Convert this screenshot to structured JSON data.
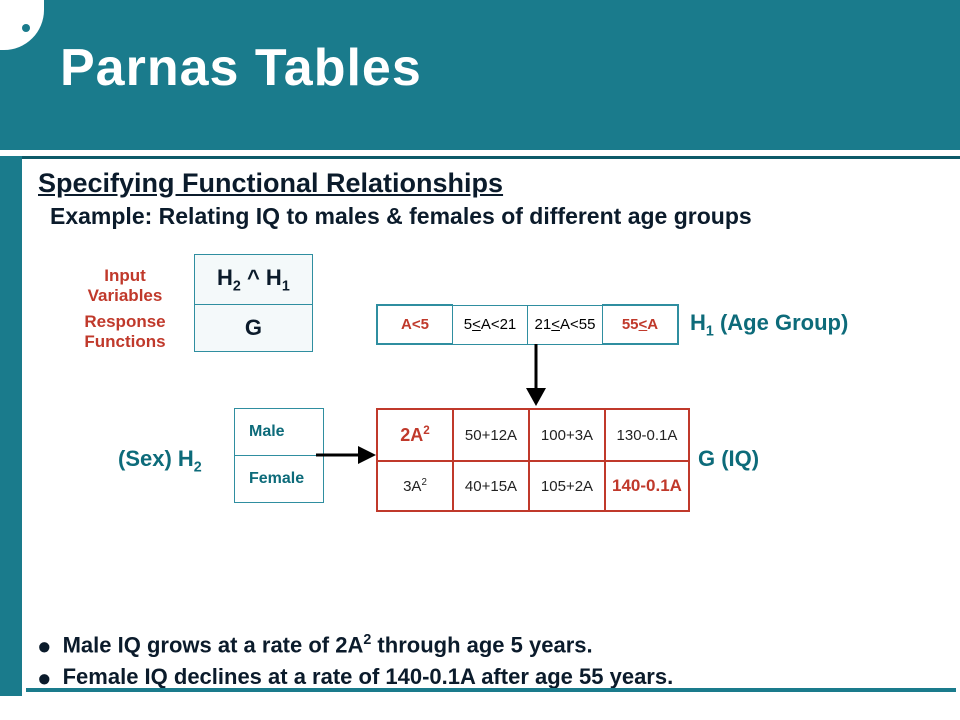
{
  "title": "Parnas Tables",
  "heading": "Specifying Functional Relationships",
  "example": "Example:  Relating IQ to males & females of different age groups",
  "labels": {
    "input_vars": "Input Variables",
    "response_fns": "Response Functions",
    "h1": "H",
    "h1_sub": "1",
    "h1_paren": " (Age Group)",
    "h2_prefix": "(Sex) H",
    "h2_sub": "2",
    "g_iq": "G (IQ)"
  },
  "schema": {
    "top": "H₂ ^ H₁",
    "bottom": "G"
  },
  "age_cells": [
    "A<5",
    "5≤A<21",
    "21≤A<55",
    "55≤A"
  ],
  "sex_cells": [
    "Male",
    "Female"
  ],
  "main_rows": [
    [
      "2A²",
      "50+12A",
      "100+3A",
      "130-0.1A"
    ],
    [
      "3A²",
      "40+15A",
      "105+2A",
      "140-0.1A"
    ]
  ],
  "bullets": [
    "Male IQ  grows at a rate of 2A² through age 5 years.",
    "Female IQ declines at a rate of 140-0.1A after age 55 years."
  ],
  "colors": {
    "teal": "#1a7b8c",
    "red": "#c0392b"
  }
}
